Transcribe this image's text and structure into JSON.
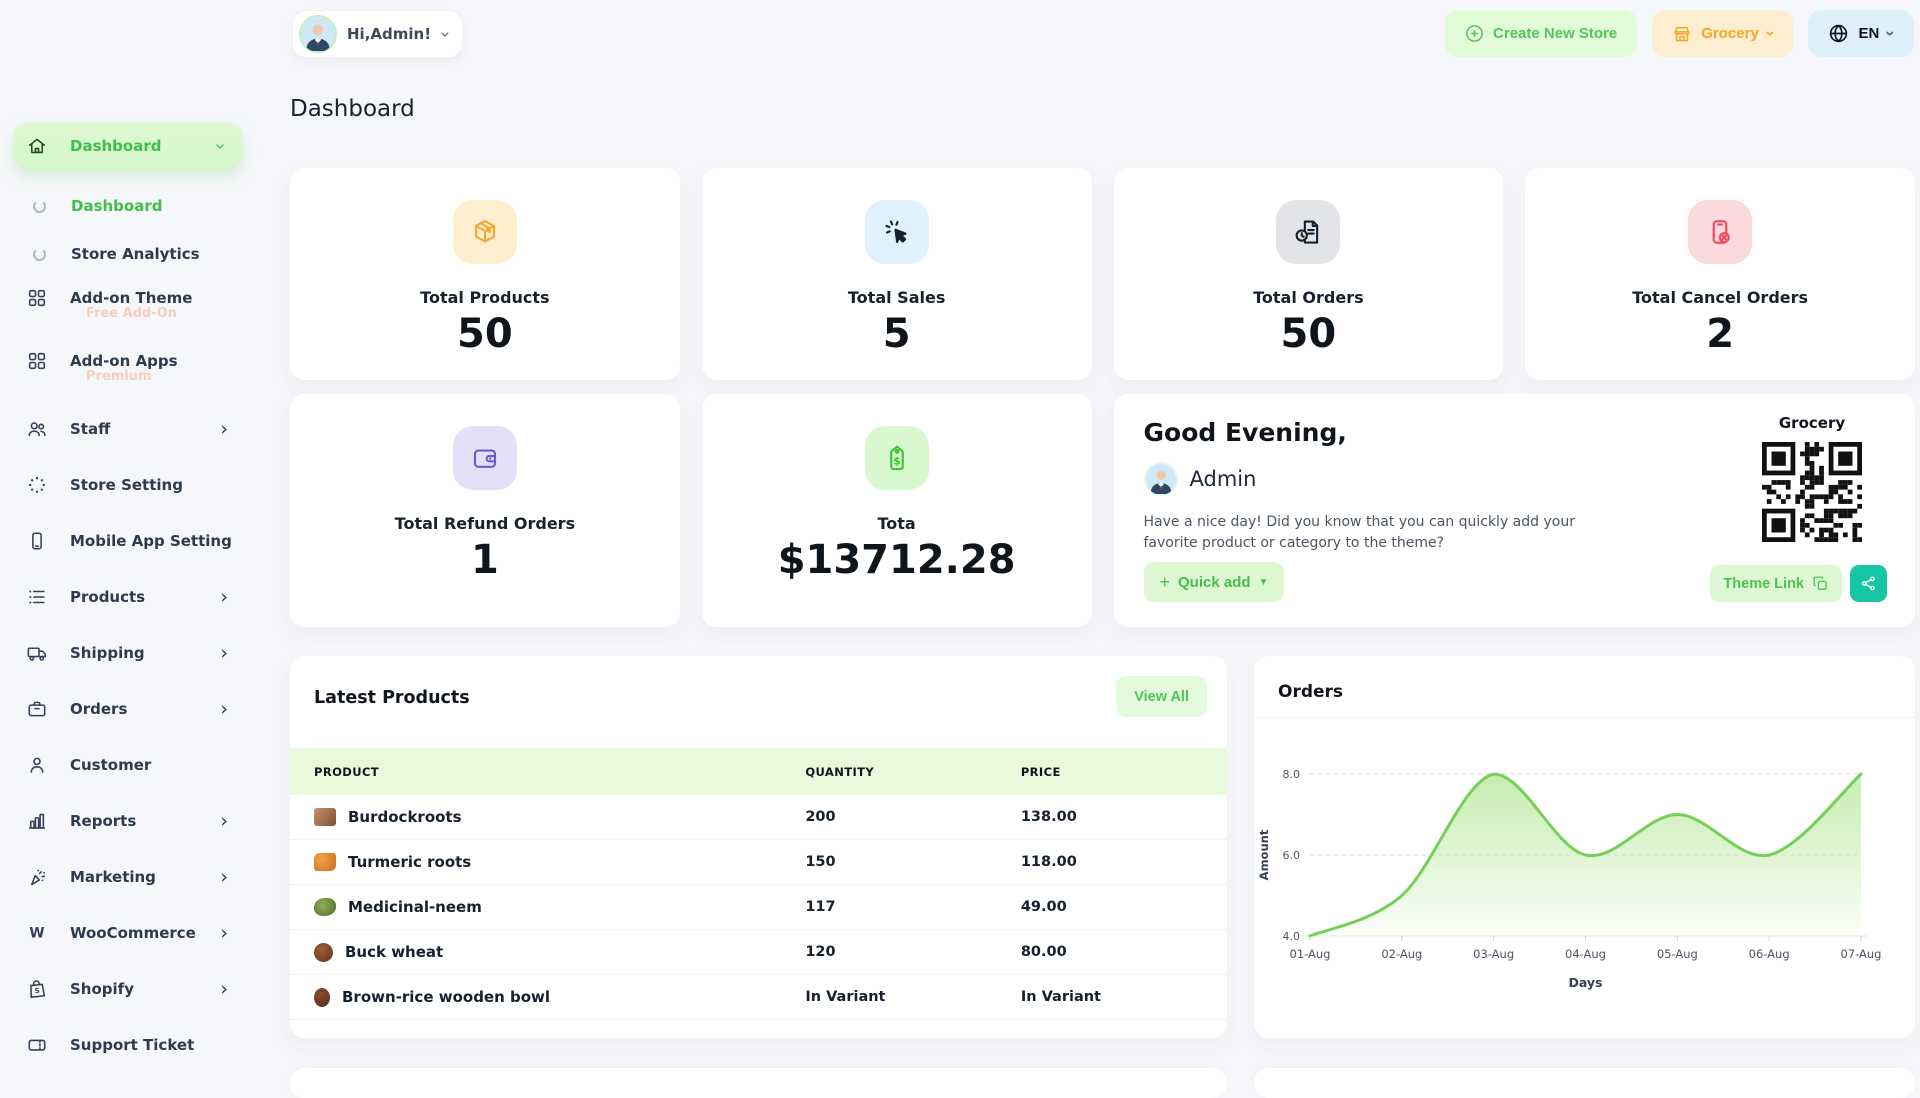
{
  "header": {
    "greeting_chip": "Hi,Admin!",
    "create_store_label": "Create New Store",
    "store_name": "Grocery",
    "language": "EN"
  },
  "page_title": "Dashboard",
  "sidebar": {
    "items": [
      {
        "label": "Dashboard",
        "icon": "home-icon",
        "type": "parent",
        "active": true,
        "chevron": "down"
      },
      {
        "label": "Dashboard",
        "icon": "loader-arc-icon",
        "type": "sub",
        "active": true
      },
      {
        "label": "Store Analytics",
        "icon": "loader-arc-icon",
        "type": "sub"
      },
      {
        "label": "Add-on Theme",
        "icon": "apps-grid-icon",
        "badge": "Free Add-On"
      },
      {
        "label": "Add-on Apps",
        "icon": "apps-grid-icon",
        "badge": "Premium"
      },
      {
        "label": "Staff",
        "icon": "staff-icon",
        "chevron": "right"
      },
      {
        "label": "Store Setting",
        "icon": "dots-circle-icon"
      },
      {
        "label": "Mobile App Setting",
        "icon": "mobile-icon"
      },
      {
        "label": "Products",
        "icon": "list-icon",
        "chevron": "right"
      },
      {
        "label": "Shipping",
        "icon": "truck-icon",
        "chevron": "right"
      },
      {
        "label": "Orders",
        "icon": "briefcase-icon",
        "chevron": "right"
      },
      {
        "label": "Customer",
        "icon": "person-icon"
      },
      {
        "label": "Reports",
        "icon": "bar-chart-icon",
        "chevron": "right"
      },
      {
        "label": "Marketing",
        "icon": "megaphone-icon",
        "chevron": "right"
      },
      {
        "label": "WooCommerce",
        "icon": "woocommerce-icon",
        "chevron": "right"
      },
      {
        "label": "Shopify",
        "icon": "shopify-bag-icon",
        "chevron": "right"
      },
      {
        "label": "Support Ticket",
        "icon": "ticket-icon"
      }
    ]
  },
  "stats": [
    {
      "label": "Total Products",
      "value": "50",
      "icon": "package-icon",
      "tile_bg": "#fdeecd",
      "icon_color": "#f0a832"
    },
    {
      "label": "Total Sales",
      "value": "5",
      "icon": "cursor-click-icon",
      "tile_bg": "#def1fc",
      "icon_color": "#16212e"
    },
    {
      "label": "Total Orders",
      "value": "50",
      "icon": "order-document-icon",
      "tile_bg": "#e3e4e7",
      "icon_color": "#16212e"
    },
    {
      "label": "Total Cancel Orders",
      "value": "2",
      "icon": "cancel-order-icon",
      "tile_bg": "#fcd9de",
      "icon_color": "#ef4a5b"
    },
    {
      "label": "Total Refund Orders",
      "value": "1",
      "icon": "wallet-icon",
      "tile_bg": "#e4e0f7",
      "icon_color": "#6d5bd0"
    },
    {
      "label": "Tota",
      "value": "$13712.28",
      "icon": "price-tag-icon",
      "tile_bg": "#d9f8d0",
      "icon_color": "#3ec433"
    }
  ],
  "greeting_card": {
    "title": "Good Evening,",
    "name": "Admin",
    "message": "Have a nice day! Did you know that you can quickly add your favorite product or category to the theme?",
    "quick_add_label": "Quick add",
    "store_label": "Grocery",
    "theme_link_label": "Theme Link"
  },
  "latest_products": {
    "title": "Latest Products",
    "view_all_label": "View All",
    "columns": [
      "PRODUCT",
      "QUANTITY",
      "PRICE"
    ],
    "rows": [
      {
        "product": "Burdockroots",
        "quantity": "200",
        "price": "138.00",
        "photo": "burdock-roots-photo"
      },
      {
        "product": "Turmeric roots",
        "quantity": "150",
        "price": "118.00",
        "photo": "turmeric-roots-photo"
      },
      {
        "product": "Medicinal-neem",
        "quantity": "117",
        "price": "49.00",
        "photo": "neem-photo"
      },
      {
        "product": "Buck wheat",
        "quantity": "120",
        "price": "80.00",
        "photo": "buck-wheat-photo"
      },
      {
        "product": "Brown-rice wooden bowl",
        "quantity": "In Variant",
        "price": "In Variant",
        "photo": "brown-rice-bowl-photo"
      }
    ]
  },
  "chart_data": {
    "type": "area",
    "title": "Orders",
    "x": [
      "01-Aug",
      "02-Aug",
      "03-Aug",
      "04-Aug",
      "05-Aug",
      "06-Aug",
      "07-Aug"
    ],
    "values": [
      4,
      5,
      8,
      6,
      7,
      6,
      8
    ],
    "xlabel": "Days",
    "ylabel": "Amount",
    "ylim": [
      4,
      8
    ],
    "yticks": [
      "8.0",
      "6.0",
      "4.0"
    ],
    "line_color": "#76cf58",
    "fill_top_color": "#c4ecab",
    "grid": "dashed-horizontal",
    "legend": "none"
  }
}
